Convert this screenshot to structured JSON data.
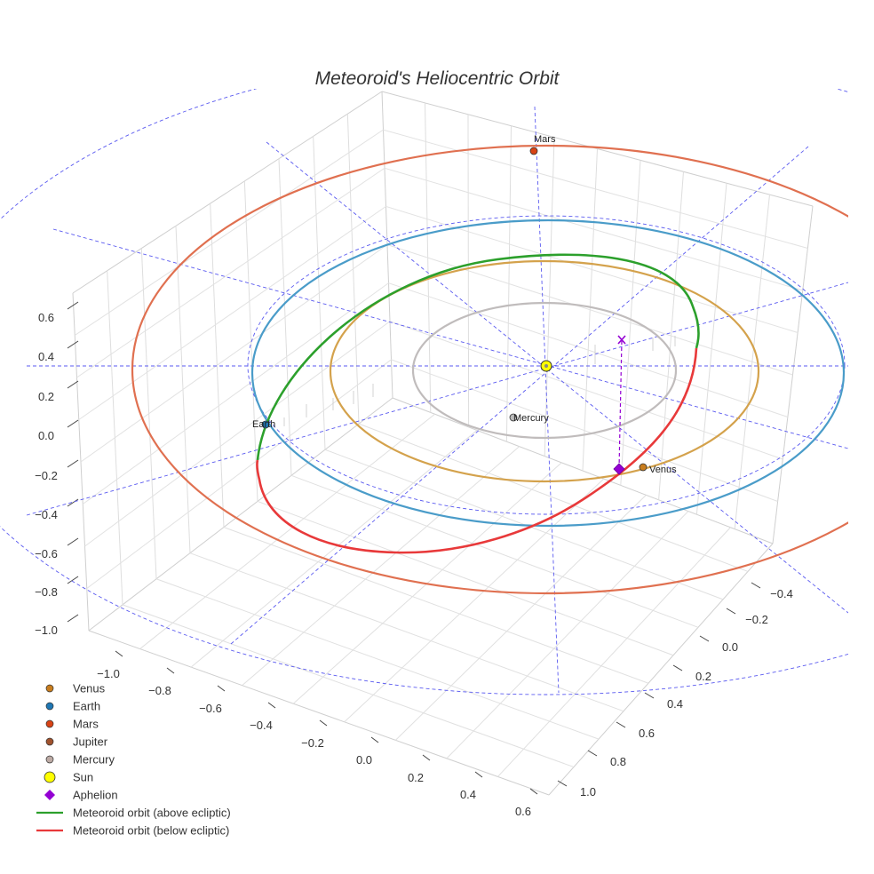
{
  "chart_data": {
    "type": "scatter",
    "title": "Meteoroid's Heliocentric Orbit",
    "x_ticks": [
      "−1.0",
      "−0.8",
      "−0.6",
      "−0.4",
      "−0.2",
      "0.0",
      "0.2",
      "0.4",
      "0.6"
    ],
    "y_ticks": [
      "−0.4",
      "−0.2",
      "0.0",
      "0.2",
      "0.4",
      "0.6",
      "0.8",
      "1.0"
    ],
    "z_ticks": [
      "0.6",
      "0.4",
      "0.2",
      "0.0",
      "−0.2",
      "−0.4",
      "−0.6",
      "−0.8",
      "−1.0"
    ],
    "xlim": [
      -1.1,
      0.6
    ],
    "ylim": [
      -0.55,
      1.1
    ],
    "zlim": [
      -1.05,
      0.65
    ],
    "grid": true,
    "legend_position": "bottom-left",
    "planets": [
      {
        "name": "Venus",
        "label": "Venus",
        "color": "#c87d1e",
        "orbit_color": "#d4a24c",
        "orbit_radius_au": 0.72
      },
      {
        "name": "Earth",
        "label": "Earth",
        "color": "#1f77b4",
        "orbit_color": "#4a9cc9",
        "orbit_radius_au": 1.0
      },
      {
        "name": "Mars",
        "label": "Mars",
        "color": "#d84315",
        "orbit_color": "#e07050",
        "orbit_radius_au": 1.52
      },
      {
        "name": "Mercury",
        "label": "Mercury",
        "color": "#bcbcbc",
        "orbit_color": "#c0bcbc",
        "orbit_radius_au": 0.39
      }
    ],
    "sun": {
      "name": "Sun",
      "color": "#ffff00"
    },
    "aphelion": {
      "name": "Aphelion",
      "color": "#9400d3"
    },
    "meteoroid": [
      {
        "name": "Meteoroid orbit (above ecliptic)",
        "color": "#2ca02c"
      },
      {
        "name": "Meteoroid orbit (below ecliptic)",
        "color": "#e8393a"
      }
    ],
    "legend": [
      {
        "label": "Venus",
        "kind": "dot",
        "color": "#c87d1e"
      },
      {
        "label": "Earth",
        "kind": "dot",
        "color": "#1f77b4"
      },
      {
        "label": "Mars",
        "kind": "dot",
        "color": "#d84315"
      },
      {
        "label": "Jupiter",
        "kind": "dot",
        "color": "#a0522d"
      },
      {
        "label": "Mercury",
        "kind": "dot",
        "color": "#bcaaa4"
      },
      {
        "label": "Sun",
        "kind": "sun",
        "color": "#ffff00"
      },
      {
        "label": "Aphelion",
        "kind": "diamond",
        "color": "#9400d3"
      },
      {
        "label": "Meteoroid orbit (above ecliptic)",
        "kind": "line",
        "color": "#2ca02c"
      },
      {
        "label": "Meteoroid orbit (below ecliptic)",
        "kind": "line",
        "color": "#e8393a"
      }
    ]
  }
}
